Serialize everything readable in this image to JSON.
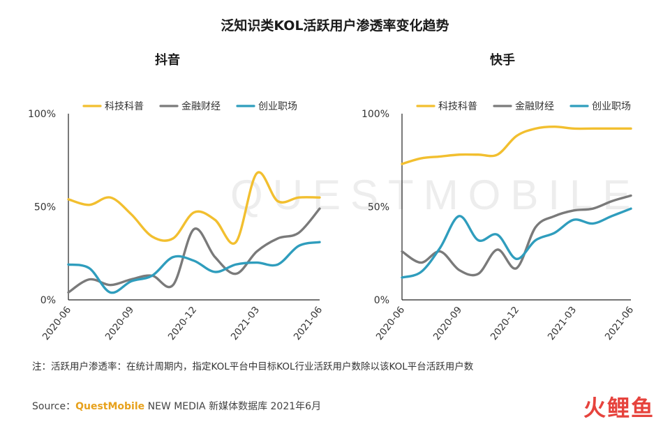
{
  "title": "泛知识类KOL活跃用户渗透率变化趋势",
  "watermark": "QUESTMOBILE",
  "note": "注：活跃用户渗透率：在统计周期内，指定KOL平台中目标KOL行业活跃用户数除以该KOL平台活跃用户数",
  "source": {
    "prefix": "Source：",
    "brand": "QuestMobile",
    "suffix": " NEW MEDIA 新媒体数据库 2021年6月"
  },
  "footer_logo": "火鲤鱼",
  "colors": {
    "sci": "#f2bf2f",
    "fin": "#7a7a7a",
    "career": "#2f9dbd"
  },
  "chart_data": [
    {
      "type": "line",
      "title": "抖音",
      "categories": [
        "2020-06",
        "2020-09",
        "2020-12",
        "2021-03",
        "2021-06"
      ],
      "x": [
        0,
        1,
        2,
        3,
        4,
        5,
        6,
        7,
        8,
        9,
        10,
        11,
        12
      ],
      "x_ticks": [
        {
          "x": 0,
          "label": "2020-06"
        },
        {
          "x": 3,
          "label": "2020-09"
        },
        {
          "x": 6,
          "label": "2020-12"
        },
        {
          "x": 9,
          "label": "2021-03"
        },
        {
          "x": 12,
          "label": "2021-06"
        }
      ],
      "y_ticks": [
        "0%",
        "50%",
        "100%"
      ],
      "ylim": [
        0,
        100
      ],
      "legend_position": "top",
      "series": [
        {
          "name": "科技科普",
          "color": "#f2bf2f",
          "values": [
            54,
            51,
            55,
            46,
            34,
            33,
            47,
            43,
            31,
            68,
            53,
            55,
            55
          ]
        },
        {
          "name": "金融财经",
          "color": "#7a7a7a",
          "values": [
            4,
            11,
            8,
            11,
            13,
            8,
            38,
            23,
            14,
            26,
            33,
            36,
            49
          ]
        },
        {
          "name": "创业职场",
          "color": "#2f9dbd",
          "values": [
            19,
            17,
            4,
            10,
            13,
            23,
            21,
            15,
            19,
            20,
            19,
            29,
            31
          ]
        }
      ]
    },
    {
      "type": "line",
      "title": "快手",
      "categories": [
        "2020-06",
        "2020-09",
        "2020-12",
        "2021-03",
        "2021-06"
      ],
      "x": [
        0,
        1,
        2,
        3,
        4,
        5,
        6,
        7,
        8,
        9,
        10,
        11,
        12
      ],
      "x_ticks": [
        {
          "x": 0,
          "label": "2020-06"
        },
        {
          "x": 3,
          "label": "2020-09"
        },
        {
          "x": 6,
          "label": "2020-12"
        },
        {
          "x": 9,
          "label": "2021-03"
        },
        {
          "x": 12,
          "label": "2021-06"
        }
      ],
      "y_ticks": [
        "0%",
        "50%",
        "100%"
      ],
      "ylim": [
        0,
        100
      ],
      "legend_position": "top",
      "series": [
        {
          "name": "科技科普",
          "color": "#f2bf2f",
          "values": [
            73,
            76,
            77,
            78,
            78,
            78,
            88,
            92,
            93,
            92,
            92,
            92,
            92
          ]
        },
        {
          "name": "金融财经",
          "color": "#7a7a7a",
          "values": [
            26,
            20,
            26,
            16,
            14,
            27,
            17,
            39,
            45,
            48,
            49,
            53,
            56
          ]
        },
        {
          "name": "创业职场",
          "color": "#2f9dbd",
          "values": [
            12,
            15,
            28,
            45,
            32,
            35,
            22,
            32,
            36,
            43,
            41,
            45,
            49
          ]
        }
      ]
    }
  ]
}
